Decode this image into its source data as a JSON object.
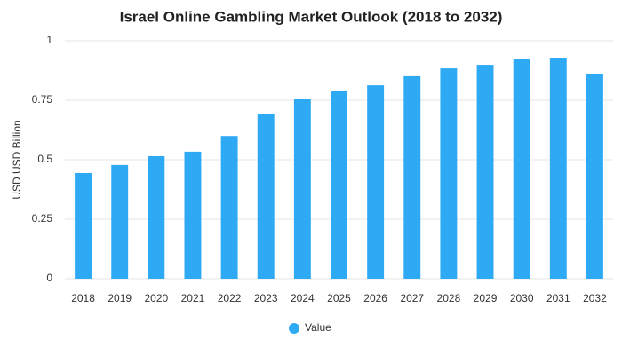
{
  "chart_data": {
    "type": "bar",
    "title": "Israel Online Gambling Market Outlook (2018 to 2032)",
    "y_label": "USD USD Billion",
    "categories": [
      "2018",
      "2019",
      "2020",
      "2021",
      "2022",
      "2023",
      "2024",
      "2025",
      "2026",
      "2027",
      "2028",
      "2029",
      "2030",
      "2031",
      "2032"
    ],
    "series": [
      {
        "name": "Value",
        "color": "#2eaaf5",
        "values": [
          0.444,
          0.478,
          0.515,
          0.534,
          0.6,
          0.694,
          0.754,
          0.791,
          0.813,
          0.851,
          0.884,
          0.899,
          0.922,
          0.929,
          0.862
        ]
      }
    ],
    "ylim": [
      0,
      1
    ],
    "yticks": [
      0,
      0.25,
      0.5,
      0.75,
      1
    ],
    "grid": true,
    "legend": "bottom"
  }
}
